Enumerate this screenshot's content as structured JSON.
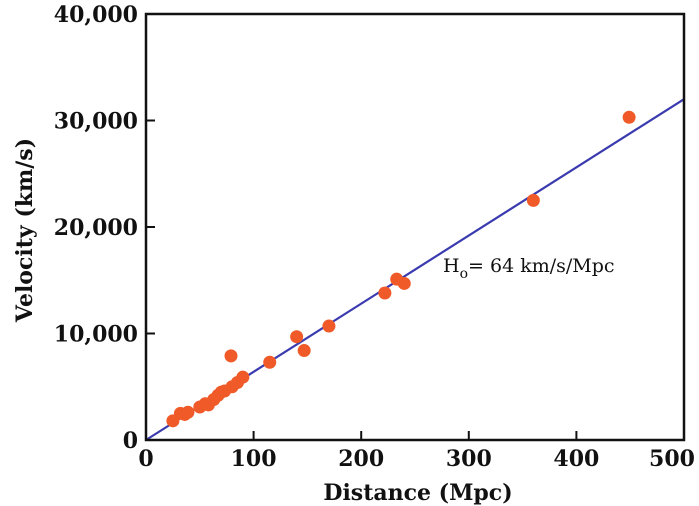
{
  "chart_data": {
    "type": "scatter",
    "xlabel": "Distance (Mpc)",
    "ylabel": "Velocity (km/s)",
    "xlim": [
      0,
      500
    ],
    "ylim": [
      0,
      40000
    ],
    "x_ticks": [
      "0",
      "100",
      "200",
      "300",
      "400",
      "500"
    ],
    "y_ticks": [
      "0",
      "10,000",
      "20,000",
      "30,000",
      "40,000"
    ],
    "grid": false,
    "colors": {
      "points": "#f05a28",
      "fit_line": "#3b3bb0",
      "axes": "#111111"
    },
    "fit_line": {
      "slope": 64,
      "x": [
        0,
        500
      ],
      "y": [
        0,
        32000
      ]
    },
    "annotation": {
      "main": "H",
      "subscript": "o",
      "rest": "= 64 km/s/Mpc"
    },
    "points": [
      {
        "x": 25,
        "y": 1800
      },
      {
        "x": 32,
        "y": 2500
      },
      {
        "x": 36,
        "y": 2400
      },
      {
        "x": 39,
        "y": 2600
      },
      {
        "x": 50,
        "y": 3100
      },
      {
        "x": 55,
        "y": 3400
      },
      {
        "x": 58,
        "y": 3300
      },
      {
        "x": 63,
        "y": 3800
      },
      {
        "x": 67,
        "y": 4200
      },
      {
        "x": 70,
        "y": 4500
      },
      {
        "x": 73,
        "y": 4600
      },
      {
        "x": 79,
        "y": 7900
      },
      {
        "x": 80,
        "y": 5000
      },
      {
        "x": 85,
        "y": 5400
      },
      {
        "x": 90,
        "y": 5900
      },
      {
        "x": 115,
        "y": 7300
      },
      {
        "x": 140,
        "y": 9700
      },
      {
        "x": 147,
        "y": 8400
      },
      {
        "x": 170,
        "y": 10700
      },
      {
        "x": 222,
        "y": 13800
      },
      {
        "x": 233,
        "y": 15100
      },
      {
        "x": 240,
        "y": 14700
      },
      {
        "x": 360,
        "y": 22500
      },
      {
        "x": 449,
        "y": 30300
      }
    ]
  }
}
